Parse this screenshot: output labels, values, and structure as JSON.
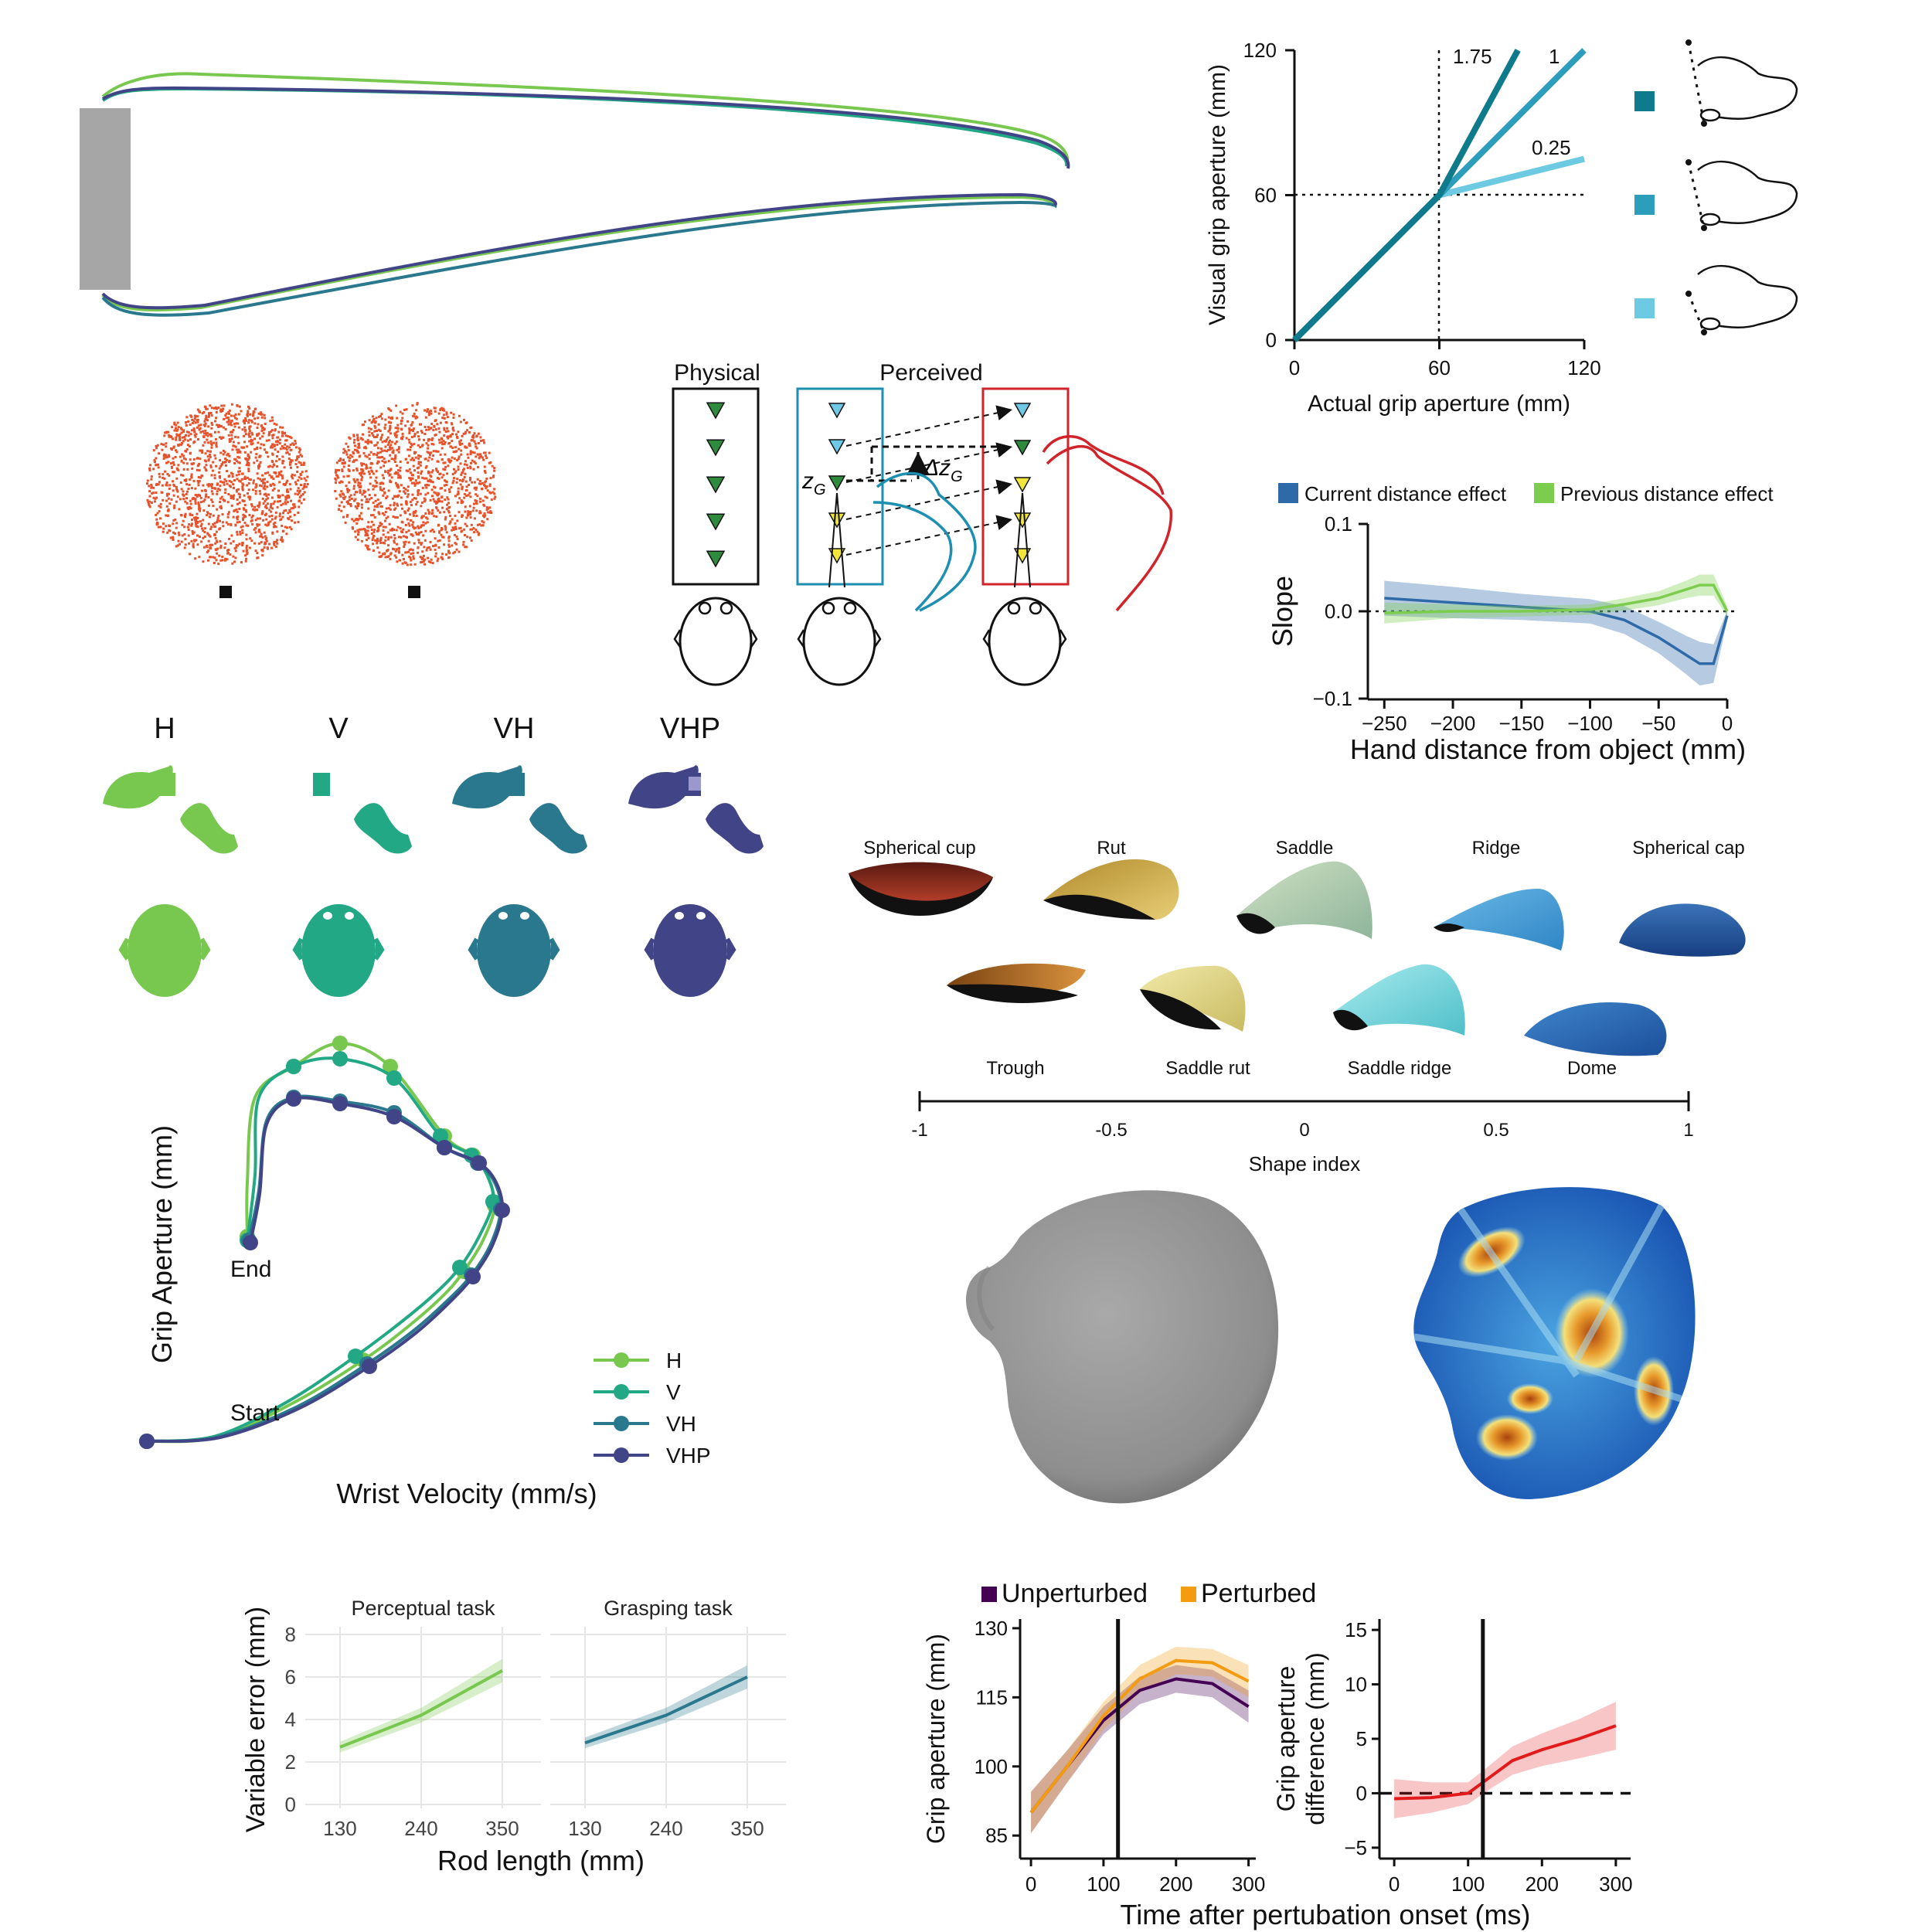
{
  "colors": {
    "H": "#78c850",
    "V": "#22a884",
    "VH": "#2a788e",
    "VHP": "#414487",
    "current": "#2f6aa8",
    "previous": "#7ccd4e",
    "unperturbed": "#440154",
    "perturbed": "#f39c12",
    "difference": "#e31a1c",
    "dots": "#e8522b",
    "gain_1_75": "#0f7a8c",
    "gain_1": "#2c9dbb",
    "gain_0_25": "#6ecae3"
  },
  "finger_panel": {
    "type": "line",
    "series": [
      "upper-finger",
      "lower-finger"
    ]
  },
  "dots_panel": {
    "type": "scatter"
  },
  "physical_perceived": {
    "physical_label": "Physical",
    "perceived_label": "Perceived",
    "zg_label": "z",
    "zg_sub": "G",
    "delta_label": "Δz",
    "delta_sub": "G"
  },
  "conditions": {
    "labels": [
      "H",
      "V",
      "VH",
      "VHP"
    ],
    "icons": [
      "hand-block-icon",
      "head-icon"
    ]
  },
  "shape_index": {
    "top_labels": [
      "Spherical cup",
      "Rut",
      "Saddle",
      "Ridge",
      "Spherical cap"
    ],
    "bottom_labels": [
      "Trough",
      "Saddle rut",
      "Saddle ridge",
      "Dome"
    ],
    "ticks": [
      "-1",
      "-0.5",
      "0",
      "0.5",
      "1"
    ],
    "xlabel": "Shape index"
  },
  "chart_data": [
    {
      "type": "line",
      "xlabel": "Actual grip aperture (mm)",
      "ylabel": "Visual grip aperture (mm)",
      "xlim": [
        0,
        120
      ],
      "ylim": [
        0,
        120
      ],
      "xticks": [
        "0",
        "60",
        "120"
      ],
      "yticks": [
        "0",
        "60",
        "120"
      ],
      "series": [
        {
          "name": "1.75",
          "x": [
            0,
            60,
            92.5
          ],
          "y": [
            0,
            60,
            120
          ]
        },
        {
          "name": "1",
          "x": [
            0,
            60,
            120
          ],
          "y": [
            0,
            60,
            120
          ]
        },
        {
          "name": "0.25",
          "x": [
            0,
            60,
            120
          ],
          "y": [
            0,
            60,
            75
          ]
        }
      ],
      "reference_lines": {
        "x": 60,
        "y": 60
      }
    },
    {
      "type": "line",
      "xlabel": "Hand distance from object (mm)",
      "ylabel": "Slope",
      "xlim": [
        -250,
        0
      ],
      "ylim": [
        -0.1,
        0.1
      ],
      "xticks": [
        "−250",
        "−200",
        "−150",
        "−100",
        "−50",
        "0"
      ],
      "yticks": [
        "0.1",
        "0.0",
        "−0.1"
      ],
      "legend_position": "top",
      "series": [
        {
          "name": "Current distance effect",
          "x": [
            -250,
            -200,
            -150,
            -100,
            -75,
            -50,
            -30,
            -20,
            -10,
            0
          ],
          "y": [
            0.015,
            0.01,
            0.005,
            0.0,
            -0.01,
            -0.03,
            -0.05,
            -0.06,
            -0.06,
            -0.005
          ]
        },
        {
          "name": "Previous distance effect",
          "x": [
            -250,
            -200,
            -150,
            -100,
            -75,
            -50,
            -30,
            -20,
            -10,
            0
          ],
          "y": [
            -0.002,
            0.0,
            0.0,
            0.002,
            0.008,
            0.015,
            0.025,
            0.03,
            0.03,
            0.0
          ]
        }
      ]
    },
    {
      "type": "line",
      "xlabel": "Wrist Velocity (mm/s)",
      "ylabel": "Grip Aperture (mm)",
      "annotations": [
        "End",
        "Start"
      ],
      "legend_position": "bottom-right",
      "series": [
        {
          "name": "H",
          "x": [
            190,
            360,
            455,
            510,
            535,
            548,
            548,
            538,
            520,
            495,
            420,
            315,
            200
          ],
          "y": [
            1165,
            1120,
            1072,
            1035,
            995,
            960,
            925,
            895,
            880,
            888,
            862,
            860,
            1000
          ]
        },
        {
          "name": "V",
          "x": [
            190,
            358,
            450,
            505,
            530,
            545,
            550,
            545,
            530,
            495,
            435,
            330,
            198
          ],
          "y": [
            1165,
            1118,
            1065,
            1025,
            990,
            955,
            920,
            895,
            882,
            890,
            875,
            870,
            1003
          ]
        },
        {
          "name": "VH",
          "x": [
            190,
            362,
            455,
            512,
            540,
            555,
            558,
            550,
            520,
            458,
            355,
            198
          ],
          "y": [
            1165,
            1122,
            1075,
            1040,
            1002,
            965,
            928,
            900,
            890,
            882,
            892,
            1003
          ]
        },
        {
          "name": "VHP",
          "x": [
            190,
            362,
            455,
            512,
            540,
            555,
            560,
            550,
            518,
            455,
            355,
            200
          ],
          "y": [
            1165,
            1122,
            1075,
            1040,
            1002,
            965,
            928,
            898,
            888,
            880,
            894,
            1005
          ]
        }
      ]
    },
    {
      "type": "line",
      "title": "Perceptual task",
      "xlabel": "Rod length (mm)",
      "ylabel": "Variable error (mm)",
      "xticks": [
        "130",
        "240",
        "350"
      ],
      "yticks": [
        "0",
        "2",
        "4",
        "6",
        "8"
      ],
      "ylim": [
        0,
        8
      ],
      "series": [
        {
          "name": "Perceptual task",
          "x": [
            130,
            240,
            350
          ],
          "y": [
            2.7,
            4.2,
            6.3
          ]
        }
      ]
    },
    {
      "type": "line",
      "title": "Grasping task",
      "xlabel": "Rod length (mm)",
      "ylabel": "Variable error (mm)",
      "xticks": [
        "130",
        "240",
        "350"
      ],
      "yticks": [
        "0",
        "2",
        "4",
        "6",
        "8"
      ],
      "ylim": [
        0,
        8
      ],
      "series": [
        {
          "name": "Grasping task",
          "x": [
            130,
            240,
            350
          ],
          "y": [
            2.9,
            4.2,
            6.0
          ]
        }
      ]
    },
    {
      "type": "line",
      "xlabel": "Time after pertubation onset (ms)",
      "ylabel": "Grip aperture (mm)",
      "xticks": [
        "0",
        "100",
        "200",
        "300"
      ],
      "yticks": [
        "85",
        "100",
        "115",
        "130"
      ],
      "xlim": [
        -15,
        310
      ],
      "ylim": [
        80,
        132
      ],
      "legend_position": "top",
      "vline": 120,
      "series": [
        {
          "name": "Unperturbed",
          "x": [
            0,
            50,
            100,
            150,
            200,
            250,
            300
          ],
          "y": [
            90,
            100,
            110,
            116.5,
            119,
            118,
            113
          ]
        },
        {
          "name": "Perturbed",
          "x": [
            0,
            50,
            100,
            150,
            200,
            250,
            300
          ],
          "y": [
            90,
            100,
            111,
            119,
            123,
            122.5,
            118.5
          ]
        }
      ]
    },
    {
      "type": "line",
      "xlabel": "Time after pertubation onset (ms)",
      "ylabel": "Grip aperture difference (mm)",
      "xticks": [
        "0",
        "100",
        "200",
        "300"
      ],
      "yticks": [
        "−5",
        "0",
        "5",
        "10",
        "15"
      ],
      "xlim": [
        -20,
        320
      ],
      "ylim": [
        -6,
        16
      ],
      "vline": 120,
      "hline": 0,
      "series": [
        {
          "name": "Difference",
          "x": [
            0,
            50,
            100,
            130,
            160,
            200,
            250,
            300
          ],
          "y": [
            -0.5,
            -0.4,
            0,
            1.5,
            3,
            4,
            5,
            6.2
          ]
        }
      ]
    }
  ],
  "legend_labels": {
    "current": "Current distance effect",
    "previous": "Previous distance effect",
    "unperturbed": "Unperturbed",
    "perturbed": "Perturbed",
    "H": "H",
    "V": "V",
    "VH": "VH",
    "VHP": "VHP",
    "end": "End",
    "start": "Start",
    "g175": "1.75",
    "g1": "1",
    "g025": "0.25"
  },
  "axis_text": {
    "grip_x": "Actual grip aperture (mm)",
    "grip_y": "Visual grip aperture (mm)",
    "hand_x": "Hand distance from object (mm)",
    "hand_y": "Slope",
    "wrist_x": "Wrist Velocity (mm/s)",
    "wrist_y": "Grip Aperture (mm)",
    "rod_x": "Rod length (mm)",
    "rod_y": "Variable error (mm)",
    "perceptual": "Perceptual task",
    "grasping": "Grasping task",
    "time_x": "Time after pertubation onset (ms)",
    "ga_y": "Grip aperture (mm)",
    "gad_y1": "Grip aperture",
    "gad_y2": "difference (mm)"
  }
}
